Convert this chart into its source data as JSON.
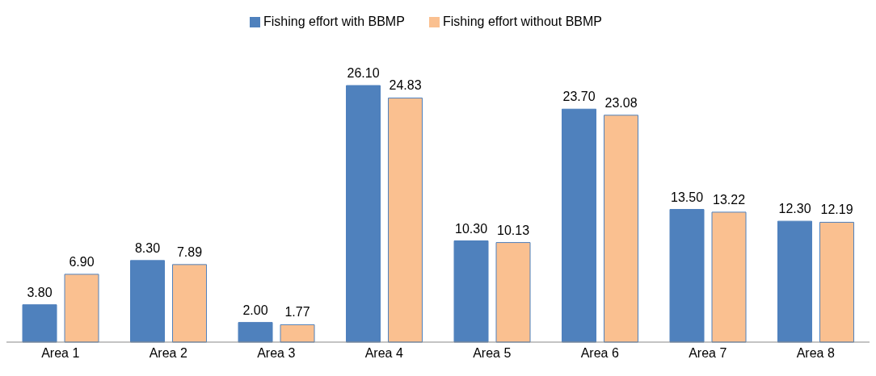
{
  "chart_data": {
    "type": "bar",
    "categories": [
      "Area 1",
      "Area 2",
      "Area 3",
      "Area 4",
      "Area 5",
      "Area 6",
      "Area 7",
      "Area 8"
    ],
    "series": [
      {
        "name": "Fishing effort with BBMP",
        "color": "#4f81bd",
        "values": [
          3.8,
          8.3,
          2.0,
          26.1,
          10.3,
          23.7,
          13.5,
          12.3
        ],
        "value_labels": [
          "3.80",
          "8.30",
          "2.00",
          "26.10",
          "10.30",
          "23.70",
          "13.50",
          "12.30"
        ]
      },
      {
        "name": "Fishing effort without BBMP",
        "color": "#fac090",
        "values": [
          6.9,
          7.89,
          1.77,
          24.83,
          10.13,
          23.08,
          13.22,
          12.19
        ],
        "value_labels": [
          "6.90",
          "7.89",
          "1.77",
          "24.83",
          "10.13",
          "23.08",
          "13.22",
          "12.19"
        ]
      }
    ],
    "legend": "top",
    "grid": false
  }
}
